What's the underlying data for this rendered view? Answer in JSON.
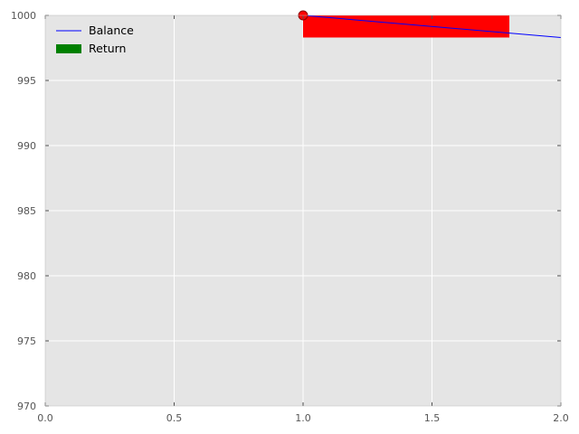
{
  "chart_data": {
    "type": "line",
    "xlim": [
      0.0,
      2.0
    ],
    "ylim": [
      970,
      1000
    ],
    "x_ticks": [
      "0.0",
      "0.5",
      "1.0",
      "1.5",
      "2.0"
    ],
    "y_ticks": [
      "970",
      "975",
      "980",
      "985",
      "990",
      "995",
      "1000"
    ],
    "grid": true,
    "legend_position": "top-left",
    "series": [
      {
        "name": "Balance",
        "type": "line",
        "color": "#0000ff",
        "x": [
          1.0,
          2.0
        ],
        "y": [
          1000.0,
          998.3
        ]
      },
      {
        "name": "Return",
        "type": "bar",
        "color": "#008000",
        "legend_color": "#008000",
        "bars": [
          {
            "x0": 1.0,
            "x1": 1.8,
            "y0": 1000.0,
            "y1": 998.3,
            "color": "#ff0000"
          }
        ]
      }
    ],
    "markers": [
      {
        "x": 1.0,
        "y": 1000.0,
        "fill": "#ff0000",
        "stroke": "#880000"
      }
    ]
  }
}
